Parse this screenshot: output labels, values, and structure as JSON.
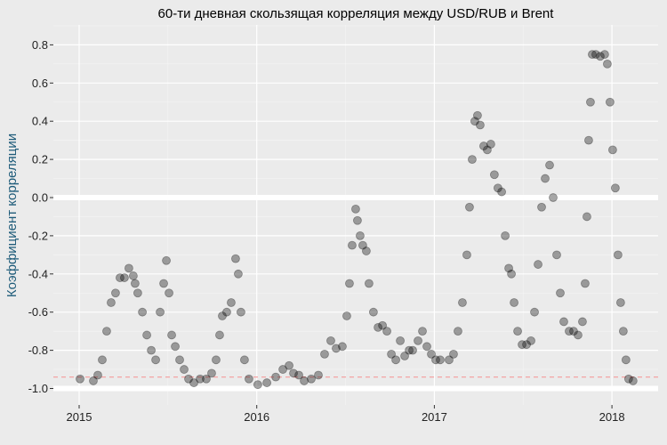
{
  "chart_data": {
    "type": "scatter",
    "title": "60-ти дневная скользящая корреляция между USD/RUB и Brent",
    "xlabel": "",
    "ylabel": "Коэффициент корреляции",
    "xlim": [
      2014.86,
      2018.26
    ],
    "ylim": [
      -1.07,
      0.88
    ],
    "x_ticks": [
      "2015",
      "2016",
      "2017",
      "2018"
    ],
    "y_ticks": [
      "-1.0",
      "-0.8",
      "-0.6",
      "-0.4",
      "-0.2",
      "0.0",
      "0.2",
      "0.4",
      "0.6",
      "0.8"
    ],
    "grid": true,
    "highlight_lines": [
      0.0,
      -1.0
    ],
    "reference_line": {
      "y": -0.94,
      "style": "dashed",
      "color": "#f4a3a3"
    },
    "point_color": "#000000",
    "point_alpha": 0.35,
    "points": [
      [
        2015.005,
        -0.95
      ],
      [
        2015.08,
        -0.96
      ],
      [
        2015.105,
        -0.93
      ],
      [
        2015.13,
        -0.85
      ],
      [
        2015.155,
        -0.7
      ],
      [
        2015.18,
        -0.55
      ],
      [
        2015.205,
        -0.5
      ],
      [
        2015.23,
        -0.42
      ],
      [
        2015.255,
        -0.42
      ],
      [
        2015.28,
        -0.37
      ],
      [
        2015.305,
        -0.41
      ],
      [
        2015.315,
        -0.45
      ],
      [
        2015.33,
        -0.5
      ],
      [
        2015.356,
        -0.6
      ],
      [
        2015.381,
        -0.72
      ],
      [
        2015.406,
        -0.8
      ],
      [
        2015.431,
        -0.85
      ],
      [
        2015.456,
        -0.6
      ],
      [
        2015.476,
        -0.45
      ],
      [
        2015.491,
        -0.33
      ],
      [
        2015.506,
        -0.5
      ],
      [
        2015.521,
        -0.72
      ],
      [
        2015.541,
        -0.78
      ],
      [
        2015.566,
        -0.85
      ],
      [
        2015.591,
        -0.9
      ],
      [
        2015.616,
        -0.95
      ],
      [
        2015.646,
        -0.97
      ],
      [
        2015.681,
        -0.95
      ],
      [
        2015.716,
        -0.95
      ],
      [
        2015.746,
        -0.92
      ],
      [
        2015.771,
        -0.85
      ],
      [
        2015.791,
        -0.72
      ],
      [
        2015.806,
        -0.62
      ],
      [
        2015.831,
        -0.6
      ],
      [
        2015.856,
        -0.55
      ],
      [
        2015.881,
        -0.32
      ],
      [
        2015.896,
        -0.4
      ],
      [
        2015.911,
        -0.6
      ],
      [
        2015.931,
        -0.85
      ],
      [
        2015.956,
        -0.95
      ],
      [
        2016.006,
        -0.98
      ],
      [
        2016.057,
        -0.97
      ],
      [
        2016.107,
        -0.94
      ],
      [
        2016.147,
        -0.9
      ],
      [
        2016.182,
        -0.88
      ],
      [
        2016.207,
        -0.92
      ],
      [
        2016.237,
        -0.93
      ],
      [
        2016.267,
        -0.96
      ],
      [
        2016.307,
        -0.95
      ],
      [
        2016.347,
        -0.93
      ],
      [
        2016.382,
        -0.82
      ],
      [
        2016.417,
        -0.75
      ],
      [
        2016.447,
        -0.79
      ],
      [
        2016.482,
        -0.78
      ],
      [
        2016.507,
        -0.62
      ],
      [
        2016.522,
        -0.45
      ],
      [
        2016.537,
        -0.25
      ],
      [
        2016.557,
        -0.06
      ],
      [
        2016.567,
        -0.12
      ],
      [
        2016.582,
        -0.2
      ],
      [
        2016.597,
        -0.25
      ],
      [
        2016.617,
        -0.28
      ],
      [
        2016.632,
        -0.45
      ],
      [
        2016.657,
        -0.6
      ],
      [
        2016.683,
        -0.68
      ],
      [
        2016.708,
        -0.67
      ],
      [
        2016.733,
        -0.7
      ],
      [
        2016.758,
        -0.82
      ],
      [
        2016.783,
        -0.85
      ],
      [
        2016.808,
        -0.75
      ],
      [
        2016.833,
        -0.83
      ],
      [
        2016.858,
        -0.8
      ],
      [
        2016.878,
        -0.8
      ],
      [
        2016.908,
        -0.75
      ],
      [
        2016.933,
        -0.7
      ],
      [
        2016.958,
        -0.78
      ],
      [
        2016.983,
        -0.82
      ],
      [
        2017.008,
        -0.85
      ],
      [
        2017.033,
        -0.85
      ],
      [
        2017.083,
        -0.85
      ],
      [
        2017.108,
        -0.82
      ],
      [
        2017.133,
        -0.7
      ],
      [
        2017.158,
        -0.55
      ],
      [
        2017.183,
        -0.3
      ],
      [
        2017.198,
        -0.05
      ],
      [
        2017.213,
        0.2
      ],
      [
        2017.228,
        0.4
      ],
      [
        2017.243,
        0.43
      ],
      [
        2017.258,
        0.38
      ],
      [
        2017.278,
        0.27
      ],
      [
        2017.298,
        0.25
      ],
      [
        2017.318,
        0.28
      ],
      [
        2017.338,
        0.12
      ],
      [
        2017.358,
        0.05
      ],
      [
        2017.379,
        0.03
      ],
      [
        2017.399,
        -0.2
      ],
      [
        2017.419,
        -0.37
      ],
      [
        2017.434,
        -0.4
      ],
      [
        2017.449,
        -0.55
      ],
      [
        2017.469,
        -0.7
      ],
      [
        2017.494,
        -0.77
      ],
      [
        2017.519,
        -0.77
      ],
      [
        2017.544,
        -0.75
      ],
      [
        2017.564,
        -0.6
      ],
      [
        2017.584,
        -0.35
      ],
      [
        2017.604,
        -0.05
      ],
      [
        2017.624,
        0.1
      ],
      [
        2017.649,
        0.17
      ],
      [
        2017.669,
        0.0
      ],
      [
        2017.689,
        -0.3
      ],
      [
        2017.709,
        -0.5
      ],
      [
        2017.729,
        -0.65
      ],
      [
        2017.759,
        -0.7
      ],
      [
        2017.784,
        -0.7
      ],
      [
        2017.809,
        -0.72
      ],
      [
        2017.834,
        -0.65
      ],
      [
        2017.849,
        -0.45
      ],
      [
        2017.859,
        -0.1
      ],
      [
        2017.869,
        0.3
      ],
      [
        2017.879,
        0.5
      ],
      [
        2017.889,
        0.75
      ],
      [
        2017.909,
        0.75
      ],
      [
        2017.934,
        0.74
      ],
      [
        2017.959,
        0.75
      ],
      [
        2017.974,
        0.7
      ],
      [
        2017.989,
        0.5
      ],
      [
        2018.004,
        0.25
      ],
      [
        2018.019,
        0.05
      ],
      [
        2018.034,
        -0.3
      ],
      [
        2018.049,
        -0.55
      ],
      [
        2018.064,
        -0.7
      ],
      [
        2018.079,
        -0.85
      ],
      [
        2018.094,
        -0.95
      ],
      [
        2018.119,
        -0.96
      ]
    ]
  }
}
